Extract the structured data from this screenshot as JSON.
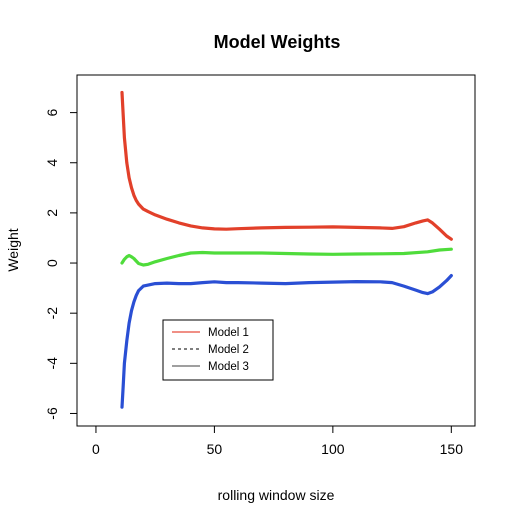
{
  "chart_data": {
    "type": "line",
    "title": "Model Weights",
    "xlabel": "rolling window size",
    "ylabel": "Weight",
    "xlim": [
      -8,
      160
    ],
    "ylim": [
      -6.5,
      7.5
    ],
    "xticks": [
      0,
      50,
      100,
      150
    ],
    "yticks": [
      -6,
      -4,
      -2,
      0,
      2,
      4,
      6
    ],
    "grid": false,
    "legend_position": "bottom-left",
    "series": [
      {
        "name": "Model 1",
        "legend_style": "solid",
        "legend_color": "#e74c3c",
        "color": "#e2402a",
        "x": [
          11,
          12,
          13,
          14,
          15,
          16,
          17,
          18,
          20,
          22,
          25,
          30,
          35,
          40,
          45,
          50,
          55,
          60,
          70,
          80,
          90,
          100,
          110,
          120,
          125,
          130,
          135,
          138,
          140,
          142,
          145,
          148,
          150
        ],
        "values": [
          6.8,
          5.0,
          4.0,
          3.4,
          3.0,
          2.7,
          2.5,
          2.35,
          2.15,
          2.05,
          1.92,
          1.75,
          1.6,
          1.48,
          1.4,
          1.36,
          1.35,
          1.37,
          1.4,
          1.42,
          1.43,
          1.44,
          1.42,
          1.4,
          1.38,
          1.45,
          1.6,
          1.68,
          1.72,
          1.6,
          1.35,
          1.08,
          0.95
        ]
      },
      {
        "name": "Model 2",
        "legend_style": "dashed",
        "legend_color": "#333333",
        "color": "#4fdc3b",
        "x": [
          11,
          12,
          13,
          14,
          15,
          16,
          17,
          18,
          20,
          22,
          25,
          30,
          35,
          40,
          45,
          50,
          60,
          70,
          80,
          90,
          100,
          110,
          120,
          130,
          140,
          145,
          150
        ],
        "values": [
          0.0,
          0.15,
          0.25,
          0.3,
          0.25,
          0.18,
          0.08,
          -0.02,
          -0.08,
          -0.05,
          0.05,
          0.18,
          0.3,
          0.4,
          0.42,
          0.4,
          0.4,
          0.4,
          0.38,
          0.36,
          0.35,
          0.36,
          0.37,
          0.38,
          0.45,
          0.52,
          0.55
        ]
      },
      {
        "name": "Model 3",
        "legend_style": "solid",
        "legend_color": "#666666",
        "color": "#2a4fd4",
        "x": [
          11,
          11.5,
          12,
          13,
          14,
          15,
          16,
          17,
          18,
          20,
          22,
          25,
          30,
          35,
          40,
          45,
          50,
          55,
          60,
          70,
          80,
          90,
          100,
          110,
          120,
          125,
          130,
          135,
          138,
          140,
          142,
          145,
          148,
          150
        ],
        "values": [
          -5.75,
          -4.9,
          -4.0,
          -3.1,
          -2.4,
          -1.9,
          -1.55,
          -1.3,
          -1.1,
          -0.92,
          -0.88,
          -0.82,
          -0.8,
          -0.82,
          -0.82,
          -0.78,
          -0.75,
          -0.78,
          -0.78,
          -0.8,
          -0.82,
          -0.78,
          -0.76,
          -0.74,
          -0.75,
          -0.78,
          -0.92,
          -1.08,
          -1.18,
          -1.22,
          -1.15,
          -0.95,
          -0.7,
          -0.5
        ]
      }
    ]
  }
}
